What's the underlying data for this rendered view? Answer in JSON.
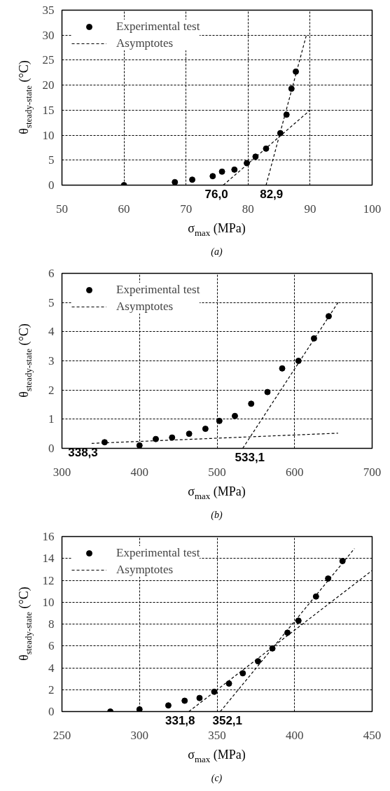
{
  "chart_data": [
    {
      "type": "scatter",
      "xlabel": "σ$_{max}$ (MPa)",
      "ylabel": "θ$_{steady-state}$ (°C)",
      "xlim": [
        50,
        100
      ],
      "xticks": [
        50,
        60,
        70,
        80,
        90,
        100
      ],
      "ylim": [
        0,
        35
      ],
      "yticks": [
        0,
        5,
        10,
        15,
        20,
        25,
        30,
        35
      ],
      "grid": true,
      "legend": "top left",
      "series": [
        {
          "name": "Experimental test",
          "marker": "circle",
          "color": "#000000",
          "x": [
            60,
            68.2,
            71.0,
            74.3,
            75.8,
            77.8,
            79.8,
            81.2,
            82.9,
            85.2,
            86.2,
            87.0,
            87.7
          ],
          "values": [
            0,
            0.6,
            1.1,
            1.8,
            2.7,
            3.1,
            4.4,
            5.7,
            7.3,
            10.4,
            14.1,
            19.3,
            22.7
          ]
        },
        {
          "name": "Asymptotes",
          "type": "line",
          "line_style": "dashed",
          "color": "#000000",
          "x": [
            76.0,
            90
          ],
          "values": [
            0,
            15
          ]
        },
        {
          "type": "line",
          "line_style": "dashed",
          "color": "#000000",
          "x": [
            82.9,
            89.4
          ],
          "values": [
            0,
            30
          ]
        }
      ],
      "annotations": [
        {
          "text": "76,0",
          "x": 76.0,
          "y": 0
        },
        {
          "text": "82,9",
          "x": 82.9,
          "y": 0
        },
        "(a)"
      ]
    },
    {
      "type": "scatter",
      "xlabel": "σ$_{max}$ (MPa)",
      "ylabel": "θ$_{steady-state}$ (°C)",
      "xlim": [
        300,
        700
      ],
      "xticks": [
        300,
        400,
        500,
        600,
        700
      ],
      "ylim": [
        0,
        6
      ],
      "yticks": [
        0,
        1,
        2,
        3,
        4,
        5,
        6
      ],
      "grid": true,
      "legend": "top left",
      "series": [
        {
          "name": "Experimental test",
          "marker": "circle",
          "color": "#000000",
          "x": [
            355,
            400,
            421,
            442,
            464,
            485,
            503,
            523,
            544,
            565,
            584,
            605,
            625,
            644
          ],
          "values": [
            0.21,
            0.1,
            0.32,
            0.37,
            0.5,
            0.67,
            0.94,
            1.11,
            1.53,
            1.93,
            2.74,
            3.0,
            3.77,
            4.53
          ]
        },
        {
          "name": "Asymptotes",
          "type": "line",
          "line_style": "dashed",
          "color": "#000000",
          "x": [
            338.3,
            656
          ],
          "values": [
            0.17,
            0.52
          ]
        },
        {
          "type": "line",
          "line_style": "dashed",
          "color": "#000000",
          "x": [
            533.1,
            656
          ],
          "values": [
            0,
            5
          ]
        }
      ],
      "annotations": [
        {
          "text": "338,3",
          "x": 338.3,
          "y": 0.17
        },
        {
          "text": "533,1",
          "x": 533.1,
          "y": 0
        },
        "(b)"
      ]
    },
    {
      "type": "scatter",
      "xlabel": "σ$_{max}$ (MPa)",
      "ylabel": "θ$_{steady-state}$ (°C)",
      "xlim": [
        250,
        450
      ],
      "xticks": [
        250,
        300,
        350,
        400,
        450
      ],
      "ylim": [
        0,
        16
      ],
      "yticks": [
        0,
        2,
        4,
        6,
        8,
        10,
        12,
        14,
        16
      ],
      "grid": true,
      "legend": "top left",
      "series": [
        {
          "name": "Experimental test",
          "marker": "circle",
          "color": "#000000",
          "x": [
            281.2,
            300,
            318.6,
            329.1,
            338.7,
            348.2,
            357.7,
            366.6,
            376.4,
            385.7,
            395.4,
            402.5,
            413.8,
            421.6,
            430.9
          ],
          "values": [
            0.0,
            0.2,
            0.56,
            0.99,
            1.24,
            1.81,
            2.56,
            3.5,
            4.6,
            5.77,
            7.21,
            8.31,
            10.52,
            12.16,
            13.76
          ]
        },
        {
          "name": "Asymptotes",
          "type": "line",
          "line_style": "dashed",
          "color": "#000000",
          "x": [
            331.8,
            450
          ],
          "values": [
            0,
            12.9
          ]
        },
        {
          "type": "line",
          "line_style": "dashed",
          "color": "#000000",
          "x": [
            352.1,
            438.6
          ],
          "values": [
            0,
            14.9
          ]
        }
      ],
      "annotations": [
        {
          "text": "331,8",
          "x": 331.8,
          "y": 0
        },
        {
          "text": "352,1",
          "x": 352.1,
          "y": 0
        },
        "(c)"
      ]
    }
  ]
}
